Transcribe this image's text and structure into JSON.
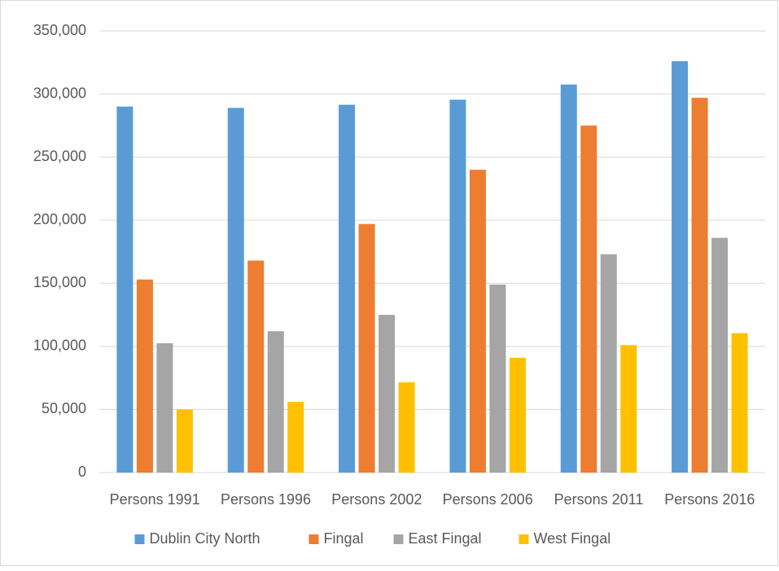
{
  "chart_data": {
    "type": "bar",
    "categories": [
      "Persons 1991",
      "Persons 1996",
      "Persons 2002",
      "Persons 2006",
      "Persons 2011",
      "Persons 2016"
    ],
    "series": [
      {
        "name": "Dublin City North",
        "color": "#5b9bd5",
        "values": [
          290000,
          289000,
          291500,
          295500,
          307500,
          326000
        ]
      },
      {
        "name": "Fingal",
        "color": "#ed7d31",
        "values": [
          153000,
          168000,
          197000,
          240000,
          275000,
          297000
        ]
      },
      {
        "name": "East Fingal",
        "color": "#a5a5a5",
        "values": [
          102500,
          112000,
          125000,
          149000,
          173000,
          186000
        ]
      },
      {
        "name": "West Fingal",
        "color": "#ffc000",
        "values": [
          50000,
          56000,
          71500,
          91000,
          101000,
          110500
        ]
      }
    ],
    "ylim": [
      0,
      350000
    ],
    "yticks": [
      0,
      {
        "value": 50000,
        "label": "50,000"
      },
      {
        "value": 100000,
        "label": "100,000"
      },
      {
        "value": 150000,
        "label": "150,000"
      },
      {
        "value": 200000,
        "label": "200,000"
      },
      {
        "value": 250000,
        "label": "250,000"
      },
      {
        "value": 300000,
        "label": "300,000"
      },
      {
        "value": 350000,
        "label": "350,000"
      }
    ],
    "grid": true,
    "legend": "bottom"
  }
}
